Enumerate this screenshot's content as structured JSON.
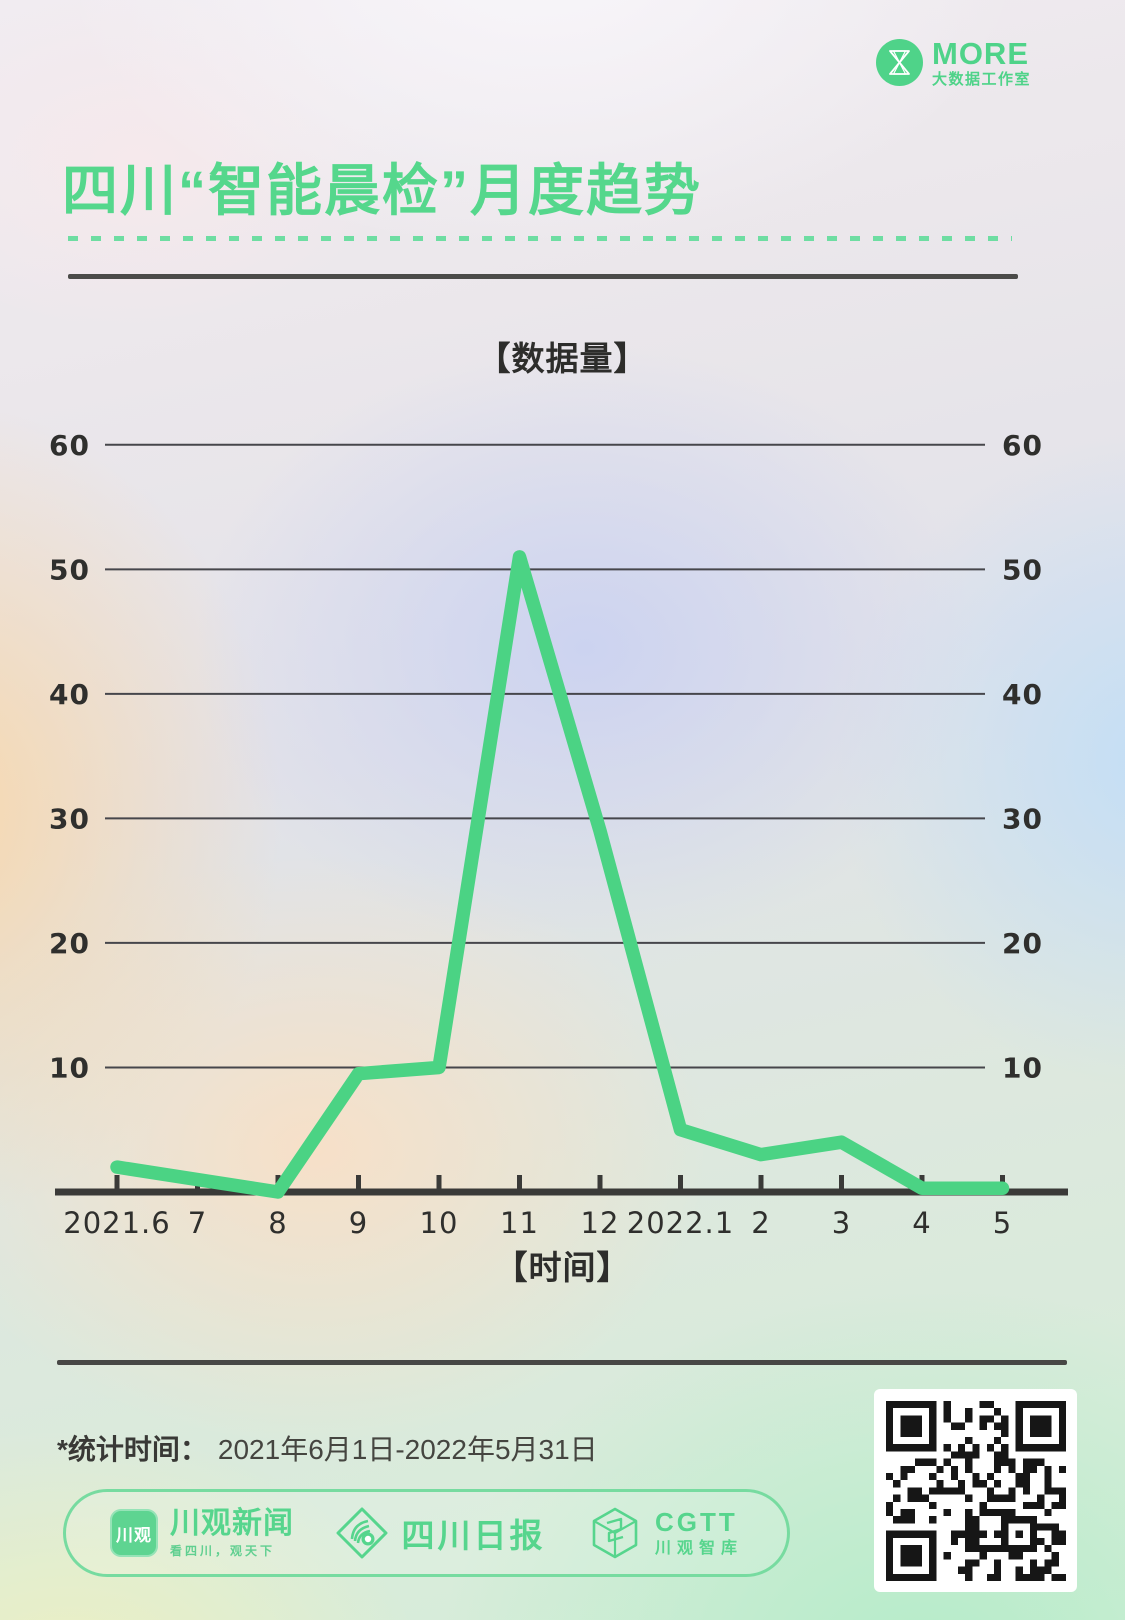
{
  "brand": {
    "name": "MORE",
    "subtitle": "大数据工作室",
    "icon": "more-monogram-icon",
    "color": "#4fd389"
  },
  "title": "四川“智能晨检”月度趋势",
  "chart_data": {
    "type": "line",
    "title": "【数据量】",
    "xlabel": "【时间】",
    "categories": [
      "2021.6",
      "7",
      "8",
      "9",
      "10",
      "11",
      "12",
      "2022.1",
      "2",
      "3",
      "4",
      "5"
    ],
    "values": [
      2,
      1,
      0,
      9.5,
      10,
      51,
      29,
      5,
      3,
      4,
      0.3,
      0.3
    ],
    "yticks": [
      10,
      20,
      30,
      40,
      50,
      60
    ],
    "ylim": [
      0,
      60
    ],
    "grid": true,
    "y_labels_position": "both-sides",
    "legend": "none",
    "line_color": "#4bd384",
    "axis_color": "#3a3a38",
    "grid_color": "#46464b",
    "tick_label_color": "#2f2f2d"
  },
  "footer": {
    "stats_label": "*统计时间：",
    "stats_value": "2021年6月1日-2022年5月31日",
    "partners": [
      {
        "badge": "川观",
        "name": "川观新闻",
        "tagline": "看四川，观天下",
        "icon": "chuanguan-news-badge-icon"
      },
      {
        "name": "四川日报",
        "icon": "sichuan-daily-diamond-icon"
      },
      {
        "name": "CGTT",
        "subtitle": "川观智库",
        "icon": "cgtt-cube-icon"
      }
    ]
  }
}
